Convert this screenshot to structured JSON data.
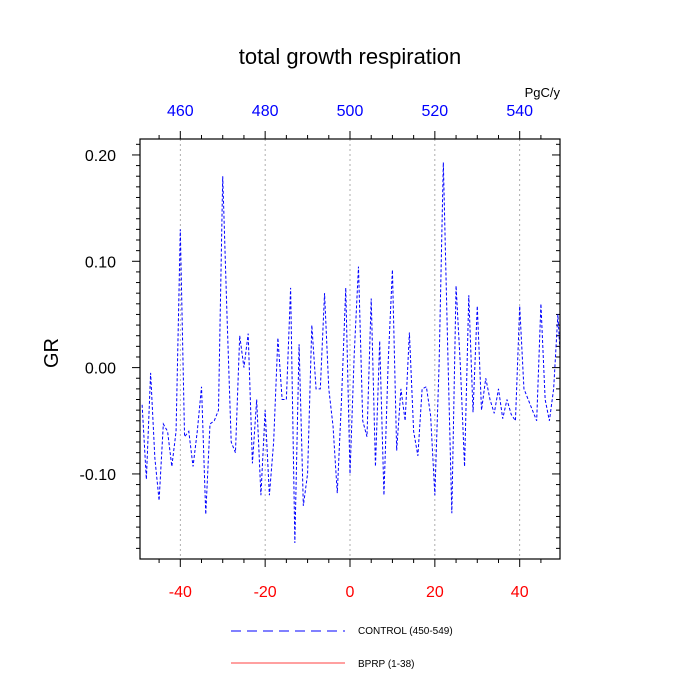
{
  "chart_data": {
    "type": "line",
    "title": "total growth respiration",
    "ylabel": "GR",
    "top_axis_units": "PgC/y",
    "xlim": [
      -49.5,
      49.5
    ],
    "ylim": [
      -0.18,
      0.215
    ],
    "bottom_axis": {
      "ticks": [
        -40,
        -20,
        0,
        20,
        40
      ],
      "labels": [
        "-40",
        "-20",
        "0",
        "20",
        "40"
      ],
      "color": "#ff0000"
    },
    "top_axis": {
      "labels": [
        "460",
        "480",
        "500",
        "520",
        "540"
      ],
      "color": "#0000ff"
    },
    "y_axis": {
      "ticks": [
        0.2,
        0.1,
        0.0,
        -0.1
      ],
      "labels": [
        "0.20",
        "0.10",
        "0.00",
        "-0.10"
      ]
    },
    "grid": "vertical dotted at major x ticks",
    "series": [
      {
        "name": "CONTROL (450-549)",
        "color": "#0000ff",
        "dash": "dashed",
        "x": [
          -49,
          -48,
          -47,
          -46,
          -45,
          -44,
          -43,
          -42,
          -41,
          -40,
          -39,
          -38,
          -37,
          -36,
          -35,
          -34,
          -33,
          -32,
          -31,
          -30,
          -29,
          -28,
          -27,
          -26,
          -25,
          -24,
          -23,
          -22,
          -21,
          -20,
          -19,
          -18,
          -17,
          -16,
          -15,
          -14,
          -13,
          -12,
          -11,
          -10,
          -9,
          -8,
          -7,
          -6,
          -5,
          -4,
          -3,
          -2,
          -1,
          0,
          1,
          2,
          3,
          4,
          5,
          6,
          7,
          8,
          9,
          10,
          11,
          12,
          13,
          14,
          15,
          16,
          17,
          18,
          19,
          20,
          21,
          22,
          23,
          24,
          25,
          26,
          27,
          28,
          29,
          30,
          31,
          32,
          33,
          34,
          35,
          36,
          37,
          38,
          39,
          40,
          41,
          42,
          43,
          44,
          45,
          46,
          47,
          48,
          49,
          50
        ],
        "y": [
          -0.035,
          -0.105,
          -0.005,
          -0.085,
          -0.125,
          -0.053,
          -0.06,
          -0.093,
          -0.06,
          0.13,
          -0.065,
          -0.06,
          -0.093,
          -0.06,
          -0.018,
          -0.138,
          -0.053,
          -0.05,
          -0.04,
          0.18,
          0.05,
          -0.07,
          -0.08,
          0.03,
          0.0,
          0.032,
          -0.09,
          -0.03,
          -0.12,
          -0.04,
          -0.12,
          -0.07,
          0.028,
          -0.03,
          -0.03,
          0.075,
          -0.165,
          0.022,
          -0.13,
          -0.1,
          0.04,
          -0.02,
          -0.02,
          0.07,
          -0.02,
          -0.055,
          -0.118,
          -0.03,
          0.075,
          -0.1,
          0.013,
          0.095,
          -0.05,
          -0.065,
          0.065,
          -0.093,
          0.025,
          -0.12,
          0.005,
          0.092,
          -0.078,
          -0.02,
          -0.05,
          0.033,
          -0.06,
          -0.083,
          -0.02,
          -0.018,
          -0.045,
          -0.12,
          0.003,
          0.193,
          0.023,
          -0.137,
          0.077,
          0.003,
          -0.093,
          0.068,
          -0.042,
          0.058,
          -0.04,
          -0.01,
          -0.03,
          -0.043,
          -0.02,
          -0.048,
          -0.03,
          -0.044,
          -0.05,
          0.058,
          -0.02,
          -0.03,
          -0.04,
          -0.05,
          0.06,
          -0.03,
          -0.05,
          -0.02,
          0.05,
          -0.02
        ]
      }
    ],
    "legend": {
      "placement": "bottom",
      "entries": [
        {
          "label": "CONTROL (450-549)",
          "color": "#0000ff",
          "style": "dashed"
        },
        {
          "label": "BPRP (1-38)",
          "color": "#ff0000",
          "style": "solid"
        }
      ]
    }
  }
}
